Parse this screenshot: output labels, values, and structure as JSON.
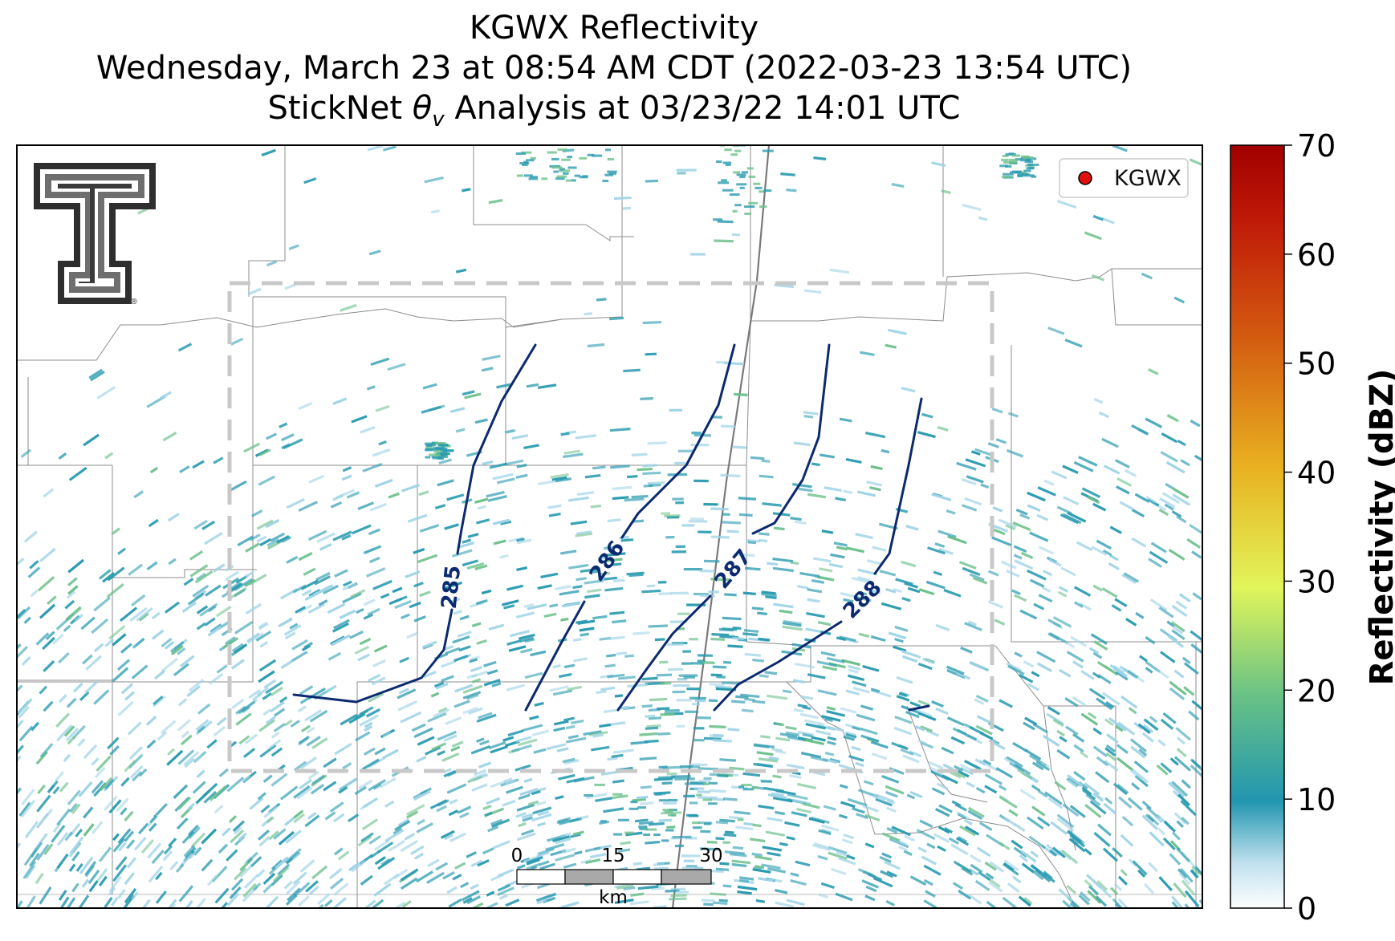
{
  "title": {
    "line1": "KGWX Reflectivity",
    "line2": "Wednesday, March 23 at 08:54 AM CDT (2022-03-23 13:54 UTC)",
    "line3_pre": "StickNet ",
    "line3_symbol": "θ",
    "line3_sub": "v",
    "line3_post": " Analysis at 03/23/22 14:01 UTC"
  },
  "legend": {
    "label": "KGWX",
    "marker_color": "#e01010"
  },
  "contour_labels": [
    "285",
    "286",
    "287",
    "288"
  ],
  "contour_color": "#0b2a6f",
  "colorbar": {
    "label": "Reflectivity (dBZ)",
    "min": 0,
    "max": 70,
    "ticks": [
      "0",
      "10",
      "20",
      "30",
      "40",
      "50",
      "60",
      "70"
    ]
  },
  "scale_bar": {
    "ticks": [
      "0",
      "15",
      "30"
    ],
    "unit": "km"
  },
  "logo": {
    "name": "Texas Tech Double T logo",
    "mark": "®"
  },
  "colors": {
    "reflectivity_primary": "#2a9bb0",
    "reflectivity_light": "#9fd3e6",
    "reflectivity_green": "#6cc08a",
    "analysis_box": "#c8c8c8",
    "county_lines": "#8c8c8c"
  }
}
